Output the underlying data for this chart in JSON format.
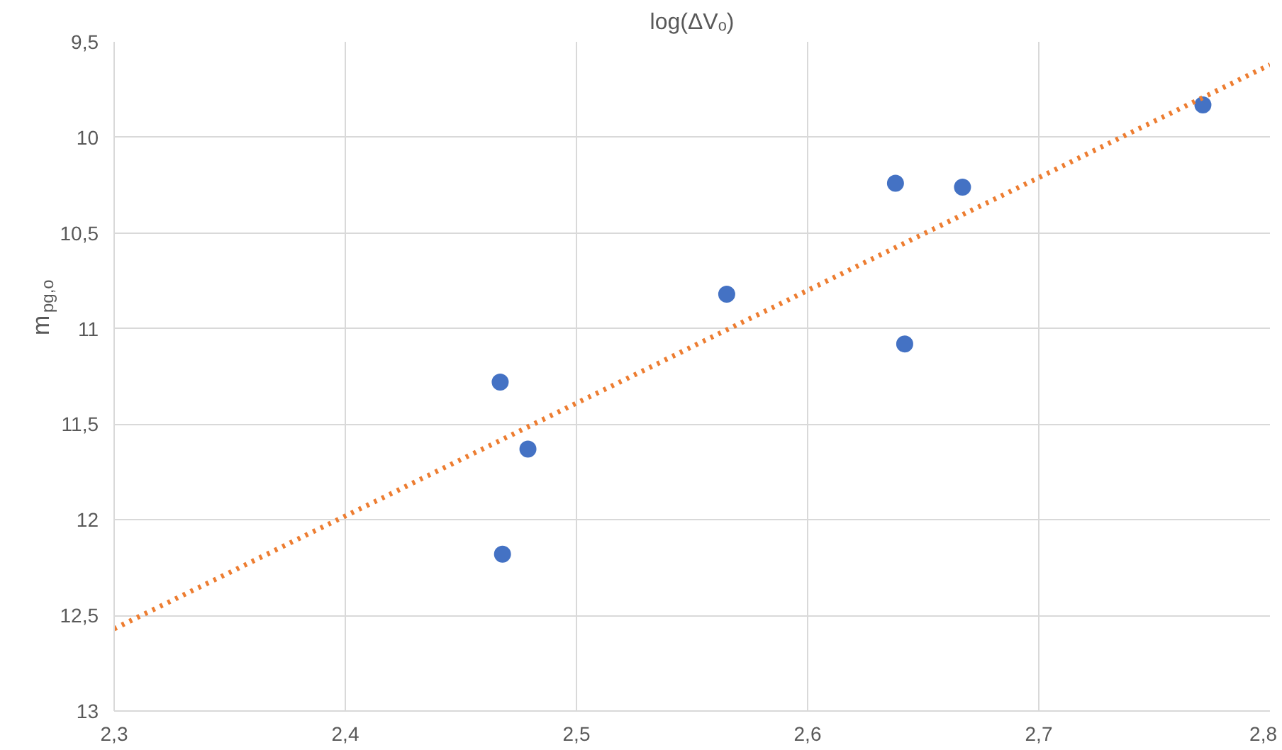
{
  "chart_data": {
    "type": "scatter",
    "title": "log(ΔVₒ)",
    "ylabel": "m$_{pg,o}$",
    "xlim": [
      2.3,
      2.8
    ],
    "xticks": [
      {
        "value": 2.3,
        "label": "2,3"
      },
      {
        "value": 2.4,
        "label": "2,4"
      },
      {
        "value": 2.5,
        "label": "2,5"
      },
      {
        "value": 2.6,
        "label": "2,6"
      },
      {
        "value": 2.7,
        "label": "2,7"
      },
      {
        "value": 2.8,
        "label": "2,8"
      }
    ],
    "ylim": [
      13,
      9.5
    ],
    "yticks": [
      {
        "value": 9.5,
        "label": "9,5"
      },
      10,
      {
        "value": 10.5,
        "label": "10,5"
      },
      11,
      {
        "value": 11.5,
        "label": "11,5"
      },
      12,
      {
        "value": 12.5,
        "label": "12,5"
      },
      13
    ],
    "grid": true,
    "series": [
      {
        "marker": "circle",
        "color": "#4472c4",
        "x": [
          2.467,
          2.479,
          2.468,
          2.565,
          2.638,
          2.642,
          2.667,
          2.771
        ],
        "values": [
          11.28,
          11.63,
          12.18,
          10.82,
          10.24,
          11.08,
          10.26,
          9.83
        ]
      },
      {
        "type": "line",
        "color": "#ed7d31",
        "line_style": "dotted",
        "x": [
          2.3,
          2.8
        ],
        "values": [
          12.57,
          9.62
        ]
      }
    ]
  }
}
